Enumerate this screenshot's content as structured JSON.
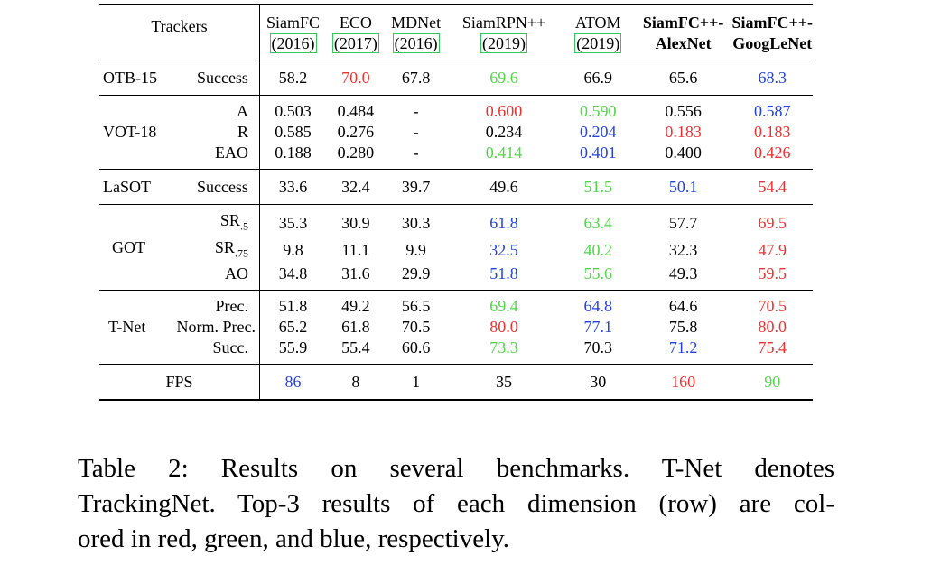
{
  "header": {
    "trackers_label": "Trackers",
    "columns": [
      {
        "name": "SiamFC",
        "year": "(2016)"
      },
      {
        "name": "ECO",
        "year": "(2017)"
      },
      {
        "name": "MDNet",
        "year": "(2016)"
      },
      {
        "name": "SiamRPN++",
        "year": "(2019)"
      },
      {
        "name": "ATOM",
        "year": "(2019)"
      },
      {
        "name": "SiamFC++-",
        "line2": "AlexNet"
      },
      {
        "name": "SiamFC++-",
        "line2": "GoogLeNet"
      }
    ]
  },
  "rows": [
    {
      "dataset": "OTB-15",
      "metric": "Success",
      "values": [
        "58.2",
        "70.0",
        "67.8",
        "69.6",
        "66.9",
        "65.6",
        "68.3"
      ]
    },
    {
      "dataset": "VOT-18",
      "metric": "A",
      "values": [
        "0.503",
        "0.484",
        "-",
        "0.600",
        "0.590",
        "0.556",
        "0.587"
      ]
    },
    {
      "dataset": "",
      "metric": "R",
      "values": [
        "0.585",
        "0.276",
        "-",
        "0.234",
        "0.204",
        "0.183",
        "0.183"
      ]
    },
    {
      "dataset": "",
      "metric": "EAO",
      "values": [
        "0.188",
        "0.280",
        "-",
        "0.414",
        "0.401",
        "0.400",
        "0.426"
      ]
    },
    {
      "dataset": "LaSOT",
      "metric": "Success",
      "values": [
        "33.6",
        "32.4",
        "39.7",
        "49.6",
        "51.5",
        "50.1",
        "54.4"
      ]
    },
    {
      "dataset": "GOT",
      "metric": "SR",
      "metric_sub": ".5",
      "values": [
        "35.3",
        "30.9",
        "30.3",
        "61.8",
        "63.4",
        "57.7",
        "69.5"
      ]
    },
    {
      "dataset": "",
      "metric": "SR",
      "metric_sub": ".75",
      "values": [
        "9.8",
        "11.1",
        "9.9",
        "32.5",
        "40.2",
        "32.3",
        "47.9"
      ]
    },
    {
      "dataset": "",
      "metric": "AO",
      "values": [
        "34.8",
        "31.6",
        "29.9",
        "51.8",
        "55.6",
        "49.3",
        "59.5"
      ]
    },
    {
      "dataset": "T-Net",
      "metric": "Prec.",
      "values": [
        "51.8",
        "49.2",
        "56.5",
        "69.4",
        "64.8",
        "64.6",
        "70.5"
      ]
    },
    {
      "dataset": "",
      "metric": "Norm. Prec.",
      "values": [
        "65.2",
        "61.8",
        "70.5",
        "80.0",
        "77.1",
        "75.8",
        "80.0"
      ]
    },
    {
      "dataset": "",
      "metric": "Succ.",
      "values": [
        "55.9",
        "55.4",
        "60.6",
        "73.3",
        "70.3",
        "71.2",
        "75.4"
      ]
    },
    {
      "dataset": "FPS",
      "metric": "",
      "values": [
        "86",
        "8",
        "1",
        "35",
        "30",
        "160",
        "90"
      ]
    }
  ],
  "colors": {
    "first": "#ee3131",
    "second": "#52d64a",
    "third": "#2342e0"
  },
  "caption": {
    "line1": "Table 2: Results on several benchmarks. T-Net denotes",
    "line2": "TrackingNet. Top-3 results of each dimension (row) are col-",
    "line3": "ored in red, green, and blue, respectively."
  }
}
